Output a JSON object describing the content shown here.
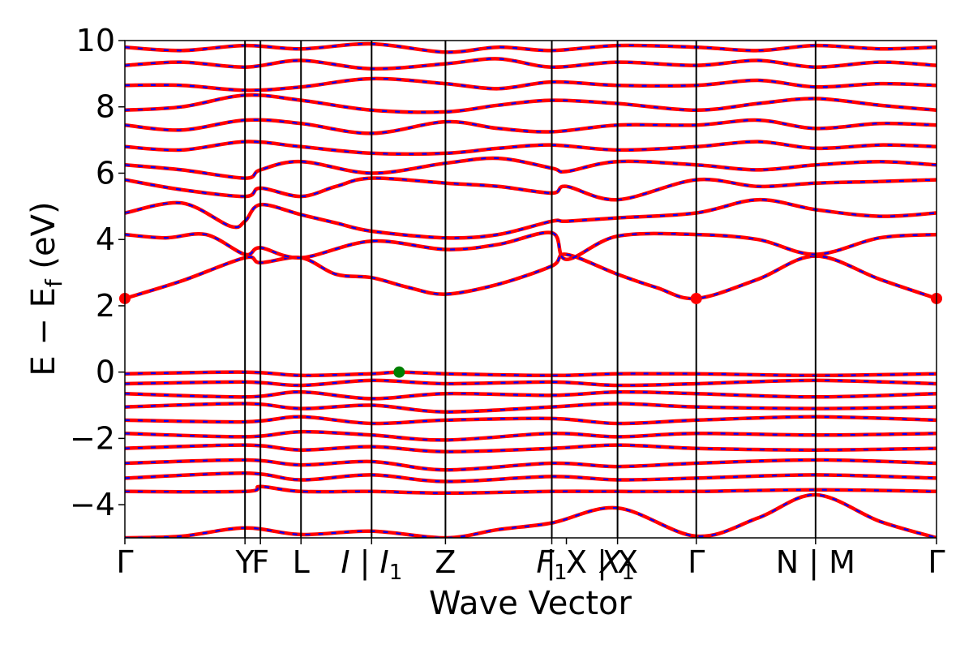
{
  "chart_data": {
    "type": "line",
    "title": "",
    "xlabel": "Wave Vector",
    "ylabel": "E − E",
    "ylabel_sub": "f",
    "ylabel_unit": " (eV)",
    "ylim": [
      -5,
      10
    ],
    "yticks": [
      -4,
      -2,
      0,
      2,
      4,
      6,
      8,
      10
    ],
    "ytick_labels": [
      "−4",
      "−2",
      "0",
      "2",
      "4",
      "6",
      "8",
      "10"
    ],
    "xlim": [
      0,
      1
    ],
    "kpoints": [
      {
        "x": 0.0,
        "label": "Γ",
        "sub": ""
      },
      {
        "x": 0.148,
        "label": "Y",
        "sub": ""
      },
      {
        "x": 0.167,
        "label": "F",
        "sub": ""
      },
      {
        "x": 0.217,
        "label": "L",
        "sub": ""
      },
      {
        "x": 0.304,
        "label": "I | I",
        "sub": "1"
      },
      {
        "x": 0.395,
        "label": "Z",
        "sub": ""
      },
      {
        "x": 0.526,
        "label": "F",
        "sub": "1"
      },
      {
        "x": 0.544,
        "label": " | X",
        "sub": ""
      },
      {
        "x": 0.607,
        "label": "X",
        "sub": "1"
      },
      {
        "x": 0.607,
        "label": " | X",
        "sub": ""
      },
      {
        "x": 0.704,
        "label": "Γ",
        "sub": ""
      },
      {
        "x": 0.851,
        "label": "N | M",
        "sub": ""
      },
      {
        "x": 1.0,
        "label": "Γ",
        "sub": ""
      }
    ],
    "vlines": [
      0.148,
      0.167,
      0.217,
      0.304,
      0.395,
      0.526,
      0.607,
      0.704,
      0.851
    ],
    "series_styles": {
      "spin_up": {
        "color": "#ff0000",
        "style": "solid"
      },
      "spin_down": {
        "color": "#0000ff",
        "style": "dashed"
      }
    },
    "cbm_points": [
      {
        "x": 0.0,
        "y": 2.22
      },
      {
        "x": 0.704,
        "y": 2.22
      },
      {
        "x": 1.0,
        "y": 2.22
      }
    ],
    "cbm_color": "#ff0000",
    "vbm_points": [
      {
        "x": 0.338,
        "y": 0.0
      }
    ],
    "vbm_color": "#008000",
    "conduction_bands": [
      [
        [
          0,
          2.22
        ],
        [
          0.07,
          2.75
        ],
        [
          0.148,
          3.45
        ],
        [
          0.167,
          3.3
        ],
        [
          0.217,
          3.45
        ],
        [
          0.26,
          2.95
        ],
        [
          0.304,
          2.85
        ],
        [
          0.35,
          2.55
        ],
        [
          0.395,
          2.35
        ],
        [
          0.46,
          2.65
        ],
        [
          0.526,
          3.2
        ],
        [
          0.544,
          3.55
        ],
        [
          0.607,
          2.95
        ],
        [
          0.655,
          2.55
        ],
        [
          0.704,
          2.22
        ],
        [
          0.78,
          2.8
        ],
        [
          0.851,
          3.5
        ],
        [
          0.93,
          2.8
        ],
        [
          1.0,
          2.22
        ]
      ],
      [
        [
          0,
          4.15
        ],
        [
          0.05,
          4.05
        ],
        [
          0.1,
          4.15
        ],
        [
          0.148,
          3.55
        ],
        [
          0.167,
          3.75
        ],
        [
          0.217,
          3.45
        ],
        [
          0.304,
          3.95
        ],
        [
          0.395,
          3.7
        ],
        [
          0.46,
          3.85
        ],
        [
          0.526,
          4.2
        ],
        [
          0.544,
          3.4
        ],
        [
          0.607,
          4.1
        ],
        [
          0.704,
          4.15
        ],
        [
          0.78,
          4.0
        ],
        [
          0.851,
          3.55
        ],
        [
          0.93,
          4.05
        ],
        [
          1.0,
          4.15
        ]
      ],
      [
        [
          0,
          4.8
        ],
        [
          0.07,
          5.1
        ],
        [
          0.13,
          4.4
        ],
        [
          0.148,
          4.55
        ],
        [
          0.167,
          5.05
        ],
        [
          0.217,
          4.75
        ],
        [
          0.26,
          4.5
        ],
        [
          0.304,
          4.25
        ],
        [
          0.395,
          4.05
        ],
        [
          0.46,
          4.15
        ],
        [
          0.526,
          4.55
        ],
        [
          0.544,
          4.55
        ],
        [
          0.607,
          4.65
        ],
        [
          0.704,
          4.8
        ],
        [
          0.78,
          5.2
        ],
        [
          0.851,
          4.9
        ],
        [
          0.93,
          4.7
        ],
        [
          1.0,
          4.8
        ]
      ],
      [
        [
          0,
          5.8
        ],
        [
          0.07,
          5.5
        ],
        [
          0.148,
          5.3
        ],
        [
          0.167,
          5.55
        ],
        [
          0.217,
          5.3
        ],
        [
          0.26,
          5.6
        ],
        [
          0.304,
          5.85
        ],
        [
          0.395,
          5.7
        ],
        [
          0.46,
          5.6
        ],
        [
          0.526,
          5.4
        ],
        [
          0.544,
          5.6
        ],
        [
          0.607,
          5.2
        ],
        [
          0.704,
          5.8
        ],
        [
          0.78,
          5.6
        ],
        [
          0.851,
          5.7
        ],
        [
          0.93,
          5.75
        ],
        [
          1.0,
          5.8
        ]
      ],
      [
        [
          0,
          6.25
        ],
        [
          0.07,
          6.1
        ],
        [
          0.148,
          5.85
        ],
        [
          0.167,
          6.1
        ],
        [
          0.217,
          6.35
        ],
        [
          0.304,
          6.0
        ],
        [
          0.395,
          6.3
        ],
        [
          0.46,
          6.45
        ],
        [
          0.526,
          6.15
        ],
        [
          0.544,
          6.05
        ],
        [
          0.607,
          6.35
        ],
        [
          0.704,
          6.25
        ],
        [
          0.78,
          6.1
        ],
        [
          0.851,
          6.25
        ],
        [
          0.93,
          6.35
        ],
        [
          1.0,
          6.25
        ]
      ],
      [
        [
          0,
          6.8
        ],
        [
          0.07,
          6.7
        ],
        [
          0.148,
          6.95
        ],
        [
          0.217,
          6.8
        ],
        [
          0.304,
          6.6
        ],
        [
          0.395,
          6.6
        ],
        [
          0.46,
          6.75
        ],
        [
          0.526,
          6.85
        ],
        [
          0.607,
          6.7
        ],
        [
          0.704,
          6.8
        ],
        [
          0.78,
          6.95
        ],
        [
          0.851,
          6.75
        ],
        [
          0.93,
          6.85
        ],
        [
          1.0,
          6.8
        ]
      ],
      [
        [
          0,
          7.45
        ],
        [
          0.07,
          7.3
        ],
        [
          0.148,
          7.6
        ],
        [
          0.217,
          7.5
        ],
        [
          0.304,
          7.2
        ],
        [
          0.395,
          7.55
        ],
        [
          0.46,
          7.35
        ],
        [
          0.526,
          7.25
        ],
        [
          0.607,
          7.45
        ],
        [
          0.704,
          7.45
        ],
        [
          0.78,
          7.6
        ],
        [
          0.851,
          7.35
        ],
        [
          0.93,
          7.5
        ],
        [
          1.0,
          7.45
        ]
      ],
      [
        [
          0,
          7.9
        ],
        [
          0.07,
          8.0
        ],
        [
          0.148,
          8.35
        ],
        [
          0.217,
          8.2
        ],
        [
          0.304,
          7.9
        ],
        [
          0.395,
          7.85
        ],
        [
          0.46,
          8.05
        ],
        [
          0.526,
          8.2
        ],
        [
          0.607,
          8.1
        ],
        [
          0.704,
          7.9
        ],
        [
          0.78,
          8.1
        ],
        [
          0.851,
          8.25
        ],
        [
          0.93,
          8.05
        ],
        [
          1.0,
          7.9
        ]
      ],
      [
        [
          0,
          8.65
        ],
        [
          0.07,
          8.65
        ],
        [
          0.148,
          8.5
        ],
        [
          0.217,
          8.6
        ],
        [
          0.304,
          8.85
        ],
        [
          0.395,
          8.7
        ],
        [
          0.46,
          8.55
        ],
        [
          0.526,
          8.75
        ],
        [
          0.607,
          8.65
        ],
        [
          0.704,
          8.65
        ],
        [
          0.78,
          8.8
        ],
        [
          0.851,
          8.6
        ],
        [
          0.93,
          8.7
        ],
        [
          1.0,
          8.65
        ]
      ],
      [
        [
          0,
          9.25
        ],
        [
          0.07,
          9.35
        ],
        [
          0.148,
          9.2
        ],
        [
          0.217,
          9.4
        ],
        [
          0.304,
          9.15
        ],
        [
          0.395,
          9.3
        ],
        [
          0.46,
          9.45
        ],
        [
          0.526,
          9.2
        ],
        [
          0.607,
          9.35
        ],
        [
          0.704,
          9.25
        ],
        [
          0.78,
          9.4
        ],
        [
          0.851,
          9.2
        ],
        [
          0.93,
          9.35
        ],
        [
          1.0,
          9.25
        ]
      ],
      [
        [
          0,
          9.8
        ],
        [
          0.07,
          9.7
        ],
        [
          0.148,
          9.85
        ],
        [
          0.217,
          9.75
        ],
        [
          0.304,
          9.9
        ],
        [
          0.395,
          9.65
        ],
        [
          0.46,
          9.8
        ],
        [
          0.526,
          9.7
        ],
        [
          0.607,
          9.85
        ],
        [
          0.704,
          9.8
        ],
        [
          0.78,
          9.7
        ],
        [
          0.851,
          9.85
        ],
        [
          0.93,
          9.75
        ],
        [
          1.0,
          9.8
        ]
      ]
    ],
    "valence_bands": [
      [
        [
          0,
          -0.05
        ],
        [
          0.148,
          0.0
        ],
        [
          0.217,
          -0.1
        ],
        [
          0.304,
          -0.05
        ],
        [
          0.338,
          0.0
        ],
        [
          0.395,
          -0.05
        ],
        [
          0.526,
          -0.1
        ],
        [
          0.607,
          -0.05
        ],
        [
          0.704,
          -0.05
        ],
        [
          0.851,
          -0.1
        ],
        [
          1.0,
          -0.05
        ]
      ],
      [
        [
          0,
          -0.35
        ],
        [
          0.148,
          -0.3
        ],
        [
          0.217,
          -0.4
        ],
        [
          0.304,
          -0.25
        ],
        [
          0.395,
          -0.35
        ],
        [
          0.526,
          -0.3
        ],
        [
          0.607,
          -0.4
        ],
        [
          0.704,
          -0.35
        ],
        [
          0.851,
          -0.25
        ],
        [
          1.0,
          -0.35
        ]
      ],
      [
        [
          0,
          -0.65
        ],
        [
          0.148,
          -0.75
        ],
        [
          0.217,
          -0.6
        ],
        [
          0.304,
          -0.8
        ],
        [
          0.395,
          -0.65
        ],
        [
          0.526,
          -0.7
        ],
        [
          0.607,
          -0.6
        ],
        [
          0.704,
          -0.65
        ],
        [
          0.851,
          -0.75
        ],
        [
          1.0,
          -0.65
        ]
      ],
      [
        [
          0,
          -1.05
        ],
        [
          0.148,
          -0.95
        ],
        [
          0.217,
          -1.1
        ],
        [
          0.304,
          -1.0
        ],
        [
          0.395,
          -1.2
        ],
        [
          0.526,
          -1.05
        ],
        [
          0.607,
          -0.95
        ],
        [
          0.704,
          -1.05
        ],
        [
          0.851,
          -1.1
        ],
        [
          1.0,
          -1.05
        ]
      ],
      [
        [
          0,
          -1.45
        ],
        [
          0.148,
          -1.5
        ],
        [
          0.217,
          -1.35
        ],
        [
          0.304,
          -1.55
        ],
        [
          0.395,
          -1.45
        ],
        [
          0.526,
          -1.4
        ],
        [
          0.607,
          -1.55
        ],
        [
          0.704,
          -1.45
        ],
        [
          0.851,
          -1.35
        ],
        [
          1.0,
          -1.45
        ]
      ],
      [
        [
          0,
          -1.85
        ],
        [
          0.148,
          -1.95
        ],
        [
          0.217,
          -1.8
        ],
        [
          0.304,
          -1.9
        ],
        [
          0.395,
          -2.05
        ],
        [
          0.526,
          -1.85
        ],
        [
          0.607,
          -1.95
        ],
        [
          0.704,
          -1.85
        ],
        [
          0.851,
          -1.9
        ],
        [
          1.0,
          -1.85
        ]
      ],
      [
        [
          0,
          -2.3
        ],
        [
          0.148,
          -2.2
        ],
        [
          0.217,
          -2.35
        ],
        [
          0.304,
          -2.25
        ],
        [
          0.395,
          -2.4
        ],
        [
          0.526,
          -2.3
        ],
        [
          0.607,
          -2.2
        ],
        [
          0.704,
          -2.3
        ],
        [
          0.851,
          -2.35
        ],
        [
          1.0,
          -2.3
        ]
      ],
      [
        [
          0,
          -2.75
        ],
        [
          0.148,
          -2.65
        ],
        [
          0.217,
          -2.8
        ],
        [
          0.304,
          -2.7
        ],
        [
          0.395,
          -2.95
        ],
        [
          0.526,
          -2.75
        ],
        [
          0.607,
          -2.85
        ],
        [
          0.704,
          -2.75
        ],
        [
          0.851,
          -2.65
        ],
        [
          1.0,
          -2.75
        ]
      ],
      [
        [
          0,
          -3.2
        ],
        [
          0.148,
          -3.05
        ],
        [
          0.217,
          -3.25
        ],
        [
          0.304,
          -3.1
        ],
        [
          0.395,
          -3.3
        ],
        [
          0.526,
          -3.15
        ],
        [
          0.607,
          -3.25
        ],
        [
          0.704,
          -3.2
        ],
        [
          0.851,
          -3.1
        ],
        [
          1.0,
          -3.2
        ]
      ],
      [
        [
          0,
          -3.6
        ],
        [
          0.148,
          -3.6
        ],
        [
          0.167,
          -3.45
        ],
        [
          0.217,
          -3.6
        ],
        [
          0.304,
          -3.6
        ],
        [
          0.395,
          -3.65
        ],
        [
          0.526,
          -3.6
        ],
        [
          0.607,
          -3.6
        ],
        [
          0.704,
          -3.6
        ],
        [
          0.851,
          -3.55
        ],
        [
          1.0,
          -3.6
        ]
      ],
      [
        [
          0,
          -5.0
        ],
        [
          0.07,
          -4.95
        ],
        [
          0.148,
          -4.7
        ],
        [
          0.217,
          -4.9
        ],
        [
          0.304,
          -4.8
        ],
        [
          0.395,
          -5.0
        ],
        [
          0.46,
          -4.75
        ],
        [
          0.526,
          -4.55
        ],
        [
          0.607,
          -4.1
        ],
        [
          0.704,
          -4.95
        ],
        [
          0.78,
          -4.4
        ],
        [
          0.851,
          -3.7
        ],
        [
          0.93,
          -4.5
        ],
        [
          1.0,
          -5.0
        ]
      ]
    ]
  }
}
